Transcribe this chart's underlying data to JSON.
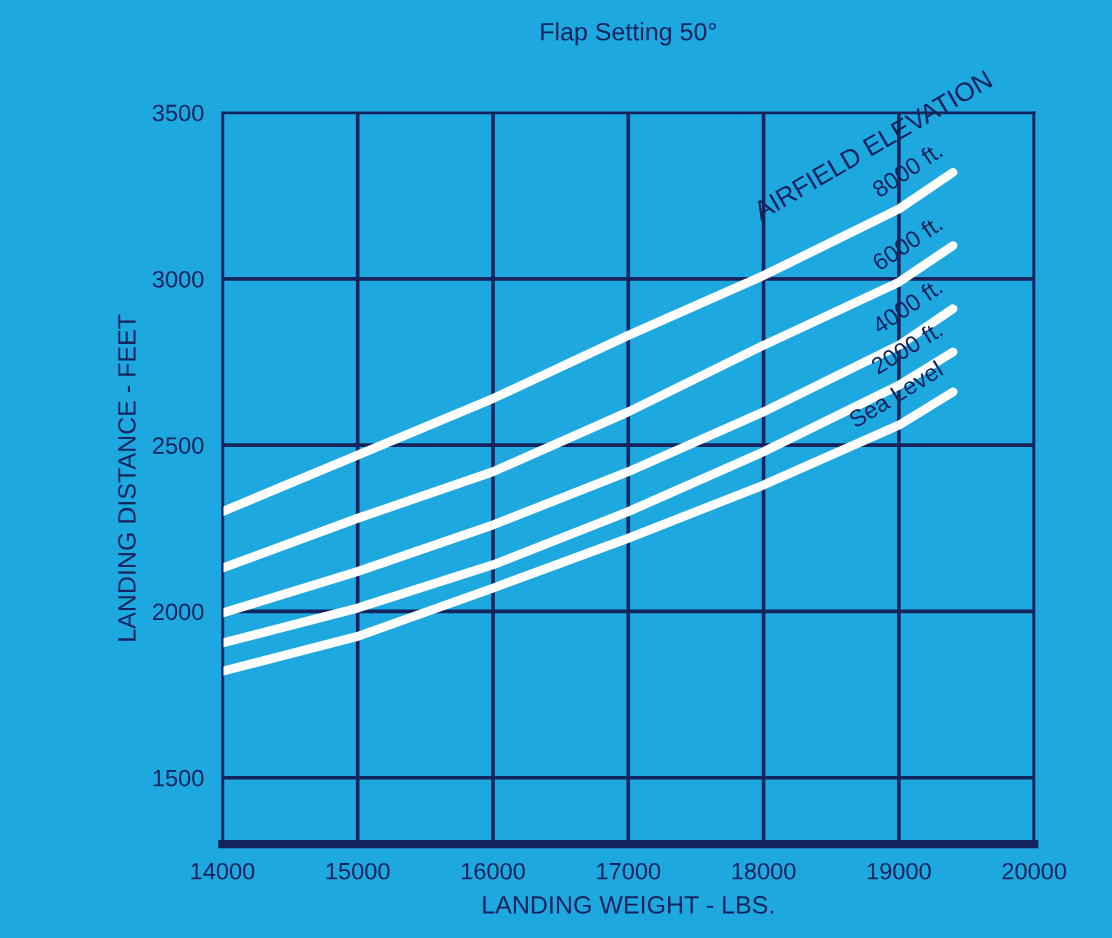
{
  "chart_data": {
    "type": "line",
    "title": "Flap Setting 50°",
    "xlabel": "LANDING WEIGHT - LBS.",
    "ylabel": "LANDING DISTANCE - FEET",
    "x": [
      14000,
      15000,
      16000,
      17000,
      18000,
      19000,
      19400
    ],
    "series": [
      {
        "name": "8000 ft.",
        "color": "#ffffff",
        "values": [
          2300,
          2470,
          2640,
          2830,
          3010,
          3210,
          3320
        ]
      },
      {
        "name": "6000 ft.",
        "color": "#ffffff",
        "values": [
          2130,
          2280,
          2420,
          2600,
          2800,
          2990,
          3100
        ]
      },
      {
        "name": "4000 ft.",
        "color": "#ffffff",
        "values": [
          1995,
          2120,
          2260,
          2420,
          2600,
          2800,
          2910
        ]
      },
      {
        "name": "2000 ft.",
        "color": "#ffffff",
        "values": [
          1905,
          2010,
          2140,
          2300,
          2480,
          2680,
          2780
        ]
      },
      {
        "name": "Sea Level",
        "color": "#ffffff",
        "values": [
          1820,
          1925,
          2070,
          2220,
          2380,
          2560,
          2660
        ]
      }
    ],
    "annotations": [
      "AIRFIELD ELEVATION"
    ],
    "xlim": [
      14000,
      20000
    ],
    "xticks": [
      14000,
      15000,
      16000,
      17000,
      18000,
      19000,
      20000
    ],
    "ylim": [
      1300,
      3500
    ],
    "yticks": [
      1500,
      2000,
      2500,
      3000,
      3500
    ],
    "grid": true,
    "legend": false,
    "marker": "none",
    "line_style": "solid"
  }
}
